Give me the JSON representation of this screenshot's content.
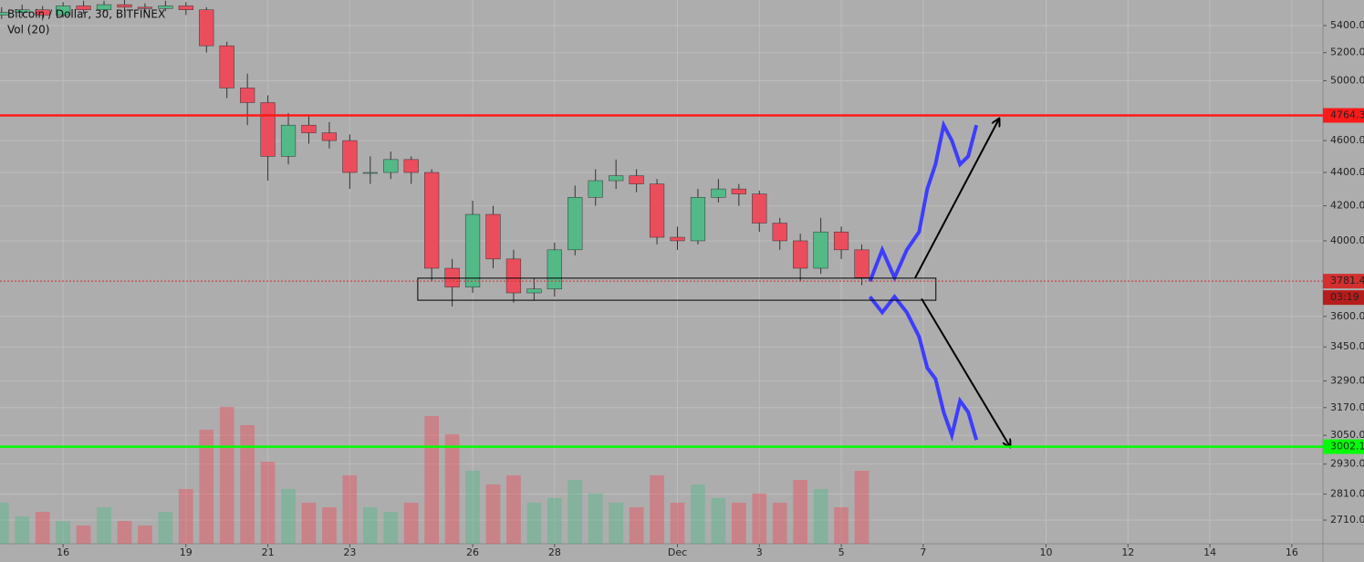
{
  "chart_data": {
    "type": "candlestick",
    "title": "Bitcoin / Dollar, 30, BITFINEX",
    "indicator": "Vol (20)",
    "log_scale": true,
    "grid": true,
    "up_color": "#53b987",
    "down_color": "#eb4d5c",
    "xlim": [
      14.46,
      46.76
    ],
    "xticks": [
      {
        "value": 16,
        "label": "16"
      },
      {
        "value": 19,
        "label": "19"
      },
      {
        "value": 21,
        "label": "21"
      },
      {
        "value": 23,
        "label": "23"
      },
      {
        "value": 26,
        "label": "26"
      },
      {
        "value": 28,
        "label": "28"
      },
      {
        "value": 31,
        "label": "Dec"
      },
      {
        "value": 33,
        "label": "3"
      },
      {
        "value": 35,
        "label": "5"
      },
      {
        "value": 37,
        "label": "7"
      },
      {
        "value": 40,
        "label": "10"
      },
      {
        "value": 42,
        "label": "12"
      },
      {
        "value": 44,
        "label": "14"
      },
      {
        "value": 46,
        "label": "16"
      }
    ],
    "ylim": [
      2622,
      5596
    ],
    "yticks": [
      {
        "value": 5400,
        "label": "5400.0"
      },
      {
        "value": 5200,
        "label": "5200.0"
      },
      {
        "value": 5000,
        "label": "5000.0"
      },
      {
        "value": 4600,
        "label": "4600.0"
      },
      {
        "value": 4400,
        "label": "4400.0"
      },
      {
        "value": 4200,
        "label": "4200.0"
      },
      {
        "value": 4000,
        "label": "4000.0"
      },
      {
        "value": 3600,
        "label": "3600.0"
      },
      {
        "value": 3450,
        "label": "3450.0"
      },
      {
        "value": 3290,
        "label": "3290.0"
      },
      {
        "value": 3170,
        "label": "3170.0"
      },
      {
        "value": 3050,
        "label": "3050.0"
      },
      {
        "value": 2930,
        "label": "2930.0"
      },
      {
        "value": 2810,
        "label": "2810.0"
      },
      {
        "value": 2710,
        "label": "2710.0"
      }
    ],
    "x": [
      14.5,
      15,
      15.5,
      16,
      16.5,
      17,
      17.5,
      18,
      18.5,
      19,
      19.5,
      20,
      20.5,
      21,
      21.5,
      22,
      22.5,
      23,
      23.5,
      24,
      24.5,
      25,
      25.5,
      26,
      26.5,
      27,
      27.5,
      28,
      28.5,
      29,
      29.5,
      30,
      30.5,
      31,
      31.5,
      32,
      32.5,
      33,
      33.5,
      34,
      34.5,
      35,
      35.5
    ],
    "ohlc": [
      [
        5480,
        5540,
        5450,
        5500
      ],
      [
        5500,
        5560,
        5470,
        5520
      ],
      [
        5520,
        5550,
        5440,
        5480
      ],
      [
        5480,
        5580,
        5460,
        5550
      ],
      [
        5550,
        5590,
        5490,
        5520
      ],
      [
        5520,
        5590,
        5500,
        5560
      ],
      [
        5560,
        5600,
        5510,
        5540
      ],
      [
        5540,
        5570,
        5500,
        5530
      ],
      [
        5530,
        5590,
        5510,
        5550
      ],
      [
        5550,
        5580,
        5480,
        5520
      ],
      [
        5520,
        5540,
        5200,
        5250
      ],
      [
        5250,
        5280,
        4880,
        4950
      ],
      [
        4950,
        5050,
        4700,
        4850
      ],
      [
        4850,
        4900,
        4350,
        4500
      ],
      [
        4500,
        4780,
        4450,
        4700
      ],
      [
        4700,
        4760,
        4580,
        4650
      ],
      [
        4650,
        4720,
        4550,
        4600
      ],
      [
        4600,
        4640,
        4300,
        4400
      ],
      [
        4400,
        4500,
        4330,
        4400
      ],
      [
        4400,
        4530,
        4360,
        4480
      ],
      [
        4480,
        4500,
        4330,
        4400
      ],
      [
        4400,
        4420,
        3780,
        3850
      ],
      [
        3850,
        3900,
        3650,
        3750
      ],
      [
        3750,
        4230,
        3720,
        4150
      ],
      [
        4150,
        4200,
        3850,
        3900
      ],
      [
        3900,
        3950,
        3670,
        3720
      ],
      [
        3720,
        3800,
        3680,
        3740
      ],
      [
        3740,
        3990,
        3700,
        3950
      ],
      [
        3950,
        4320,
        3920,
        4250
      ],
      [
        4250,
        4420,
        4200,
        4350
      ],
      [
        4350,
        4480,
        4300,
        4380
      ],
      [
        4380,
        4420,
        4280,
        4330
      ],
      [
        4330,
        4360,
        3980,
        4020
      ],
      [
        4020,
        4080,
        3950,
        4000
      ],
      [
        4000,
        4300,
        3980,
        4250
      ],
      [
        4250,
        4360,
        4220,
        4300
      ],
      [
        4300,
        4330,
        4200,
        4270
      ],
      [
        4270,
        4290,
        4050,
        4100
      ],
      [
        4100,
        4130,
        3950,
        4000
      ],
      [
        4000,
        4040,
        3780,
        3850
      ],
      [
        3850,
        4130,
        3820,
        4050
      ],
      [
        4050,
        4080,
        3900,
        3950
      ],
      [
        3950,
        3980,
        3760,
        3800
      ]
    ],
    "volume": [
      900,
      600,
      700,
      500,
      400,
      800,
      500,
      400,
      700,
      1200,
      2500,
      3000,
      2600,
      1800,
      1200,
      900,
      800,
      1500,
      800,
      700,
      900,
      2800,
      2400,
      1600,
      1300,
      1500,
      900,
      1000,
      1400,
      1100,
      900,
      800,
      1500,
      900,
      1300,
      1000,
      900,
      1100,
      900,
      1400,
      1200,
      800,
      1600
    ],
    "volume_lim": [
      0,
      3000
    ],
    "hlines": [
      {
        "value": 4764.3,
        "color": "#ff1a1a",
        "style": "solid"
      },
      {
        "value": 3781.4,
        "color": "#d32f2f",
        "style": "dotted"
      },
      {
        "value": 3002.1,
        "color": "#00ff00",
        "style": "solid"
      }
    ],
    "countdown": "03:19",
    "zone": {
      "x": [
        24.66,
        37.31
      ],
      "y": [
        3682,
        3797
      ]
    },
    "arrows": [
      {
        "x": [
          36.8,
          38.85
        ],
        "y": [
          3797,
          4740
        ]
      },
      {
        "x": [
          36.96,
          39.12
        ],
        "y": [
          3690,
          3002
        ]
      }
    ],
    "projections": [
      {
        "color": "#3d3dff",
        "x": [
          35.7,
          36,
          36.3,
          36.6,
          36.9,
          37.1,
          37.3,
          37.5,
          37.7,
          37.9,
          38.1,
          38.3
        ],
        "values": [
          3780,
          3950,
          3800,
          3950,
          4050,
          4300,
          4450,
          4700,
          4600,
          4450,
          4500,
          4700
        ]
      },
      {
        "color": "#3d3dff",
        "x": [
          35.7,
          36,
          36.3,
          36.6,
          36.9,
          37.1,
          37.3,
          37.5,
          37.7,
          37.9,
          38.1,
          38.3
        ],
        "values": [
          3700,
          3620,
          3700,
          3620,
          3500,
          3350,
          3300,
          3150,
          3050,
          3200,
          3150,
          3030
        ]
      }
    ]
  }
}
